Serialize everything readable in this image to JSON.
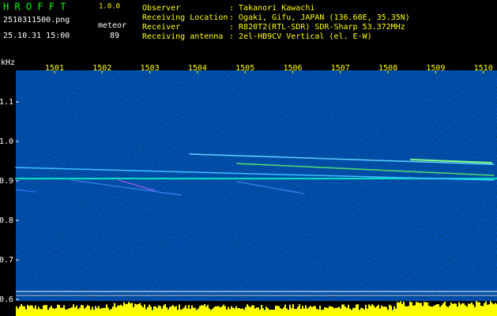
{
  "header": {
    "title": "H R O F F T",
    "version": "1.0.0",
    "filename": "2510311500.png",
    "mode": "meteor",
    "datetime": "25.10.31 15:00",
    "count": "89"
  },
  "info": [
    {
      "label": "Observer",
      "value": ": Takanori Kawachi"
    },
    {
      "label": "Receiving Location",
      "value": ": Ogaki, Gifu, JAPAN (136.60E, 35.35N)"
    },
    {
      "label": "Receiver",
      "value": ": R820T2(RTL-SDR) SDR-Sharp 53.372MHz"
    },
    {
      "label": "Receiving antenna",
      "value": ": 2el-HB9CV Vertical (el. E-W)"
    }
  ],
  "axis": {
    "unit": "kHz",
    "x_labels": [
      "1501",
      "1502",
      "1503",
      "1504",
      "1505",
      "1506",
      "1507",
      "1508",
      "1509",
      "1510"
    ],
    "y_labels": [
      "1.1",
      "1.0",
      "0.9",
      "0.8",
      "0.7",
      "0.6"
    ]
  }
}
